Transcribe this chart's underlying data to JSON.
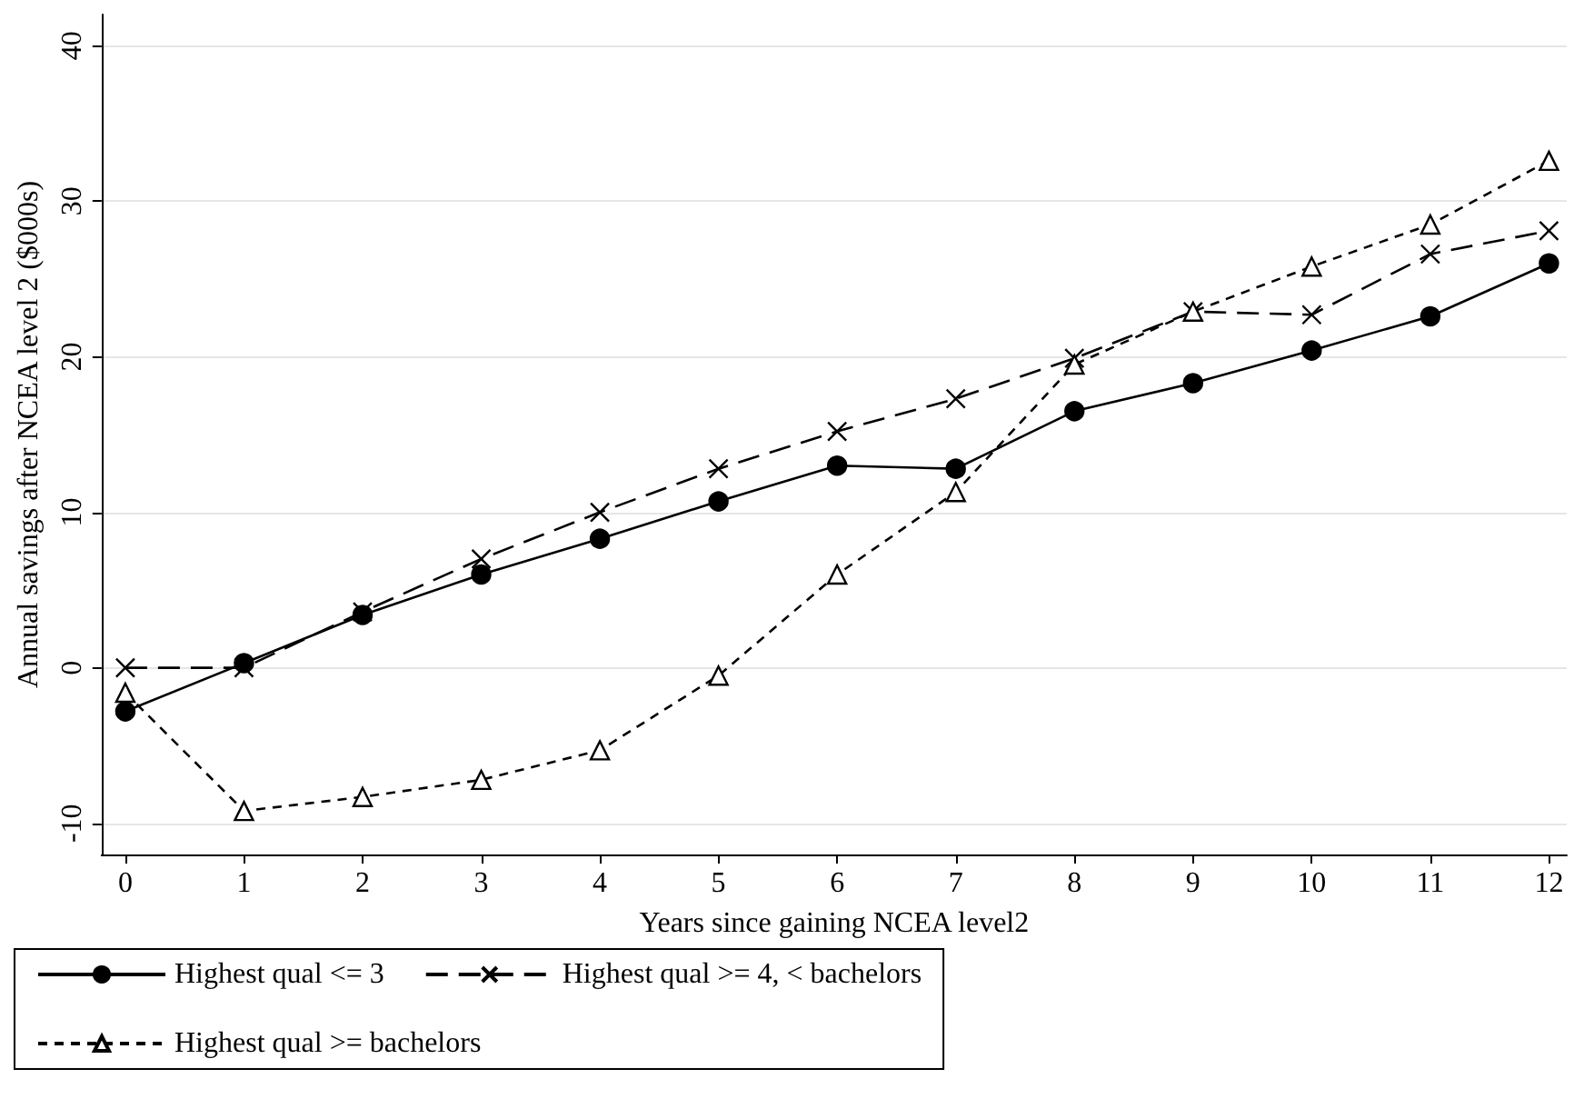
{
  "chart_data": {
    "type": "line",
    "xlabel": "Years since gaining NCEA level2",
    "ylabel": "Annual savings after NCEA level 2 ($000s)",
    "x": [
      0,
      1,
      2,
      3,
      4,
      5,
      6,
      7,
      8,
      9,
      10,
      11,
      12
    ],
    "xlim": [
      -0.2,
      12.15
    ],
    "xticks": [
      0,
      1,
      2,
      3,
      4,
      5,
      6,
      7,
      8,
      9,
      10,
      11,
      12
    ],
    "ylim": [
      -12,
      42
    ],
    "yticks": [
      -10,
      0,
      10,
      20,
      30,
      40
    ],
    "grid": "y",
    "legend": "bottom",
    "series": [
      {
        "name": "Highest qual <= 3",
        "color": "#000000",
        "marker": "circle",
        "line_style": "solid",
        "values": [
          -2.8,
          0.3,
          3.4,
          6.0,
          8.3,
          10.7,
          13.0,
          12.8,
          16.5,
          18.3,
          20.4,
          22.6,
          26.0
        ]
      },
      {
        "name": "Highest qual >= 4, < bachelors",
        "color": "#000000",
        "marker": "cross",
        "line_style": "dashed",
        "values": [
          0,
          0,
          3.6,
          7.0,
          10.0,
          12.8,
          15.2,
          17.3,
          19.9,
          22.9,
          22.7,
          26.6,
          28.1
        ]
      },
      {
        "name": "Highest qual >= bachelors",
        "color": "#000000",
        "marker": "triangle",
        "line_style": "dotted",
        "values": [
          -1.6,
          -9.2,
          -8.3,
          -7.2,
          -5.3,
          -0.5,
          6.0,
          11.3,
          19.5,
          22.9,
          25.8,
          28.5,
          32.6
        ]
      }
    ]
  }
}
